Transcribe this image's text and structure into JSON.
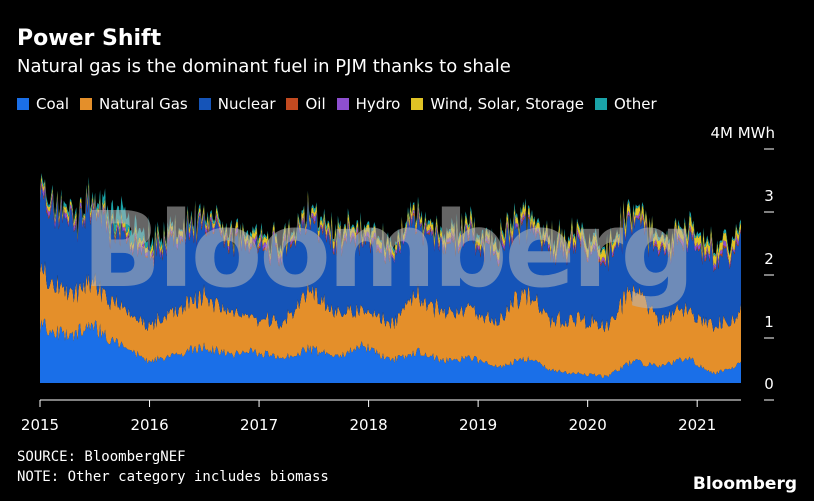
{
  "chart_data": {
    "type": "area",
    "title": "Power Shift",
    "subtitle": "Natural gas is the dominant fuel in PJM thanks to shale",
    "xlabel": "",
    "ylabel": "4M MWh",
    "x_ticks": [
      "2015",
      "2016",
      "2017",
      "2018",
      "2019",
      "2020",
      "2021"
    ],
    "xlim": [
      2015.0,
      2021.4
    ],
    "y_ticks": [
      0,
      1,
      2,
      3,
      4
    ],
    "y_tick_labels": [
      "0",
      "1",
      "2",
      "3",
      ""
    ],
    "ylim": [
      -0.3,
      4
    ],
    "stacking": "stacked",
    "x": [
      2015.0,
      2015.25,
      2015.5,
      2015.75,
      2016.0,
      2016.25,
      2016.5,
      2016.75,
      2017.0,
      2017.25,
      2017.5,
      2017.75,
      2018.0,
      2018.25,
      2018.5,
      2018.75,
      2019.0,
      2019.25,
      2019.5,
      2019.75,
      2020.0,
      2020.25,
      2020.5,
      2020.75,
      2021.0,
      2021.25,
      2021.4
    ],
    "series": [
      {
        "name": "Coal",
        "color": "#1a6fe8",
        "values": [
          0.95,
          0.75,
          0.9,
          0.6,
          0.35,
          0.45,
          0.6,
          0.45,
          0.5,
          0.4,
          0.55,
          0.4,
          0.6,
          0.35,
          0.5,
          0.35,
          0.4,
          0.25,
          0.4,
          0.2,
          0.15,
          0.1,
          0.35,
          0.25,
          0.4,
          0.15,
          0.3
        ]
      },
      {
        "name": "Natural Gas",
        "color": "#e48f2a",
        "values": [
          0.85,
          0.65,
          0.7,
          0.6,
          0.55,
          0.7,
          0.85,
          0.65,
          0.55,
          0.55,
          0.9,
          0.7,
          0.55,
          0.6,
          0.9,
          0.75,
          0.75,
          0.75,
          1.05,
          0.8,
          0.9,
          0.8,
          1.15,
          0.75,
          0.8,
          0.75,
          0.85
        ]
      },
      {
        "name": "Nuclear",
        "color": "#1554b8",
        "values": [
          1.2,
          1.1,
          1.15,
          1.1,
          1.2,
          1.1,
          1.15,
          1.1,
          1.15,
          1.1,
          1.15,
          1.1,
          1.15,
          1.1,
          1.15,
          1.1,
          1.15,
          1.1,
          1.15,
          1.1,
          1.15,
          1.05,
          1.1,
          1.05,
          1.1,
          1.05,
          1.1
        ]
      },
      {
        "name": "Oil",
        "color": "#c24a20",
        "values": [
          0.01,
          0.01,
          0.01,
          0.01,
          0.01,
          0.01,
          0.01,
          0.01,
          0.01,
          0.01,
          0.01,
          0.01,
          0.01,
          0.01,
          0.01,
          0.01,
          0.01,
          0.01,
          0.01,
          0.01,
          0.01,
          0.01,
          0.01,
          0.01,
          0.01,
          0.01,
          0.01
        ]
      },
      {
        "name": "Hydro",
        "color": "#8e4fd0",
        "values": [
          0.05,
          0.05,
          0.04,
          0.04,
          0.05,
          0.05,
          0.04,
          0.04,
          0.05,
          0.05,
          0.04,
          0.04,
          0.05,
          0.05,
          0.04,
          0.04,
          0.05,
          0.05,
          0.04,
          0.04,
          0.05,
          0.05,
          0.04,
          0.04,
          0.05,
          0.05,
          0.04
        ]
      },
      {
        "name": "Wind, Solar, Storage",
        "color": "#e0c325",
        "values": [
          0.06,
          0.06,
          0.05,
          0.07,
          0.07,
          0.07,
          0.06,
          0.08,
          0.08,
          0.08,
          0.07,
          0.09,
          0.09,
          0.09,
          0.08,
          0.1,
          0.1,
          0.1,
          0.09,
          0.11,
          0.11,
          0.11,
          0.1,
          0.12,
          0.12,
          0.12,
          0.11
        ]
      },
      {
        "name": "Other",
        "color": "#1aa3a8",
        "values": [
          0.03,
          0.03,
          0.03,
          0.25,
          0.08,
          0.03,
          0.03,
          0.03,
          0.03,
          0.03,
          0.03,
          0.03,
          0.03,
          0.03,
          0.03,
          0.03,
          0.03,
          0.03,
          0.03,
          0.03,
          0.03,
          0.03,
          0.03,
          0.03,
          0.03,
          0.03,
          0.03
        ]
      }
    ],
    "grid": false,
    "legend": "top-left"
  },
  "footer": {
    "source": "SOURCE: BloombergNEF",
    "note": "NOTE: Other category includes biomass",
    "logo": "Bloomberg",
    "watermark": "Bloomberg"
  }
}
